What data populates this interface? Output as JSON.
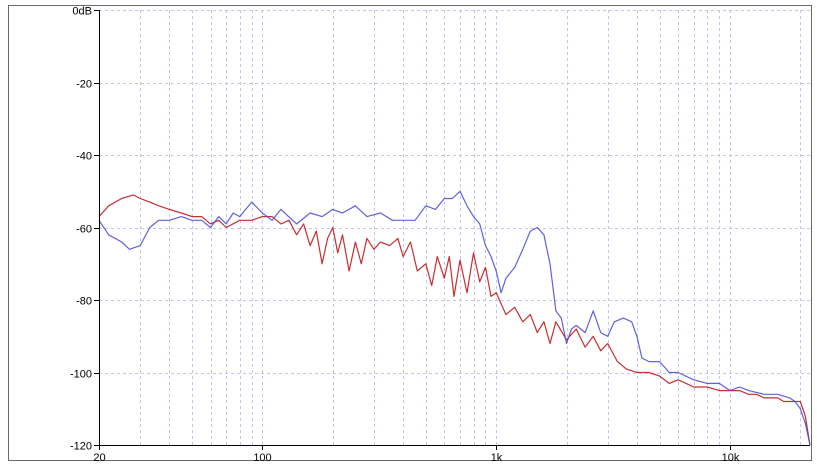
{
  "chart_data": {
    "type": "line",
    "title": "",
    "xlabel": "",
    "ylabel": "",
    "x_scale": "log",
    "xlim": [
      20,
      22000
    ],
    "ylim": [
      -120,
      0
    ],
    "grid": true,
    "legend": "none",
    "y_ticks": [
      {
        "value": 0,
        "label": "0dB"
      },
      {
        "value": -20,
        "label": "-20"
      },
      {
        "value": -40,
        "label": "-40"
      },
      {
        "value": -60,
        "label": "-60"
      },
      {
        "value": -80,
        "label": "-80"
      },
      {
        "value": -100,
        "label": "-100"
      },
      {
        "value": -120,
        "label": "-120"
      }
    ],
    "x_ticks": [
      {
        "value": 20,
        "label": "20"
      },
      {
        "value": 100,
        "label": "100"
      },
      {
        "value": 1000,
        "label": "1k"
      },
      {
        "value": 10000,
        "label": "10k"
      }
    ],
    "series": [
      {
        "color": "#c01818",
        "x": [
          20,
          22,
          25,
          28,
          30,
          33,
          36,
          40,
          45,
          50,
          55,
          60,
          65,
          70,
          80,
          90,
          100,
          110,
          120,
          130,
          140,
          150,
          160,
          170,
          180,
          190,
          200,
          210,
          220,
          235,
          250,
          265,
          280,
          300,
          320,
          350,
          380,
          400,
          430,
          460,
          500,
          530,
          560,
          600,
          630,
          660,
          700,
          750,
          800,
          850,
          900,
          950,
          1000,
          1100,
          1200,
          1300,
          1400,
          1500,
          1600,
          1700,
          1800,
          2000,
          2200,
          2400,
          2600,
          2800,
          3000,
          3300,
          3600,
          4000,
          4500,
          5000,
          5500,
          6000,
          7000,
          8000,
          9000,
          10000,
          11000,
          12000,
          13000,
          14000,
          15000,
          16000,
          17000,
          18000,
          19000,
          20000,
          21000,
          22000
        ],
        "y": [
          -57,
          -54,
          -52,
          -51,
          -52,
          -53,
          -54,
          -55,
          -56,
          -57,
          -57,
          -59,
          -58,
          -60,
          -58,
          -58,
          -57,
          -57,
          -59,
          -58,
          -62,
          -59,
          -65,
          -61,
          -70,
          -63,
          -60,
          -67,
          -62,
          -72,
          -64,
          -70,
          -63,
          -66,
          -64,
          -65,
          -63,
          -68,
          -64,
          -72,
          -70,
          -76,
          -68,
          -74,
          -68,
          -79,
          -69,
          -78,
          -67,
          -75,
          -71,
          -79,
          -78,
          -84,
          -82,
          -86,
          -84,
          -89,
          -86,
          -92,
          -86,
          -91,
          -88,
          -93,
          -90,
          -94,
          -92,
          -97,
          -99,
          -100,
          -100,
          -101,
          -103,
          -102,
          -104,
          -104,
          -105,
          -105,
          -105,
          -106,
          -106,
          -107,
          -107,
          -107,
          -108,
          -108,
          -108,
          -108,
          -112,
          -120
        ]
      },
      {
        "color": "#5050dc",
        "x": [
          20,
          22,
          25,
          27,
          30,
          33,
          36,
          40,
          45,
          50,
          55,
          60,
          65,
          70,
          75,
          80,
          90,
          100,
          110,
          120,
          140,
          160,
          180,
          200,
          220,
          250,
          280,
          320,
          360,
          400,
          450,
          500,
          550,
          600,
          650,
          700,
          750,
          800,
          850,
          900,
          950,
          1000,
          1050,
          1100,
          1200,
          1300,
          1400,
          1500,
          1600,
          1700,
          1800,
          1900,
          2000,
          2100,
          2200,
          2400,
          2600,
          2800,
          3000,
          3200,
          3500,
          3800,
          4000,
          4200,
          4500,
          5000,
          5500,
          6000,
          7000,
          8000,
          9000,
          10000,
          11000,
          12000,
          14000,
          16000,
          18000,
          19000,
          20000,
          21000,
          22000
        ],
        "y": [
          -58,
          -62,
          -64,
          -66,
          -65,
          -60,
          -58,
          -58,
          -57,
          -58,
          -58,
          -60,
          -57,
          -59,
          -56,
          -57,
          -53,
          -56,
          -58,
          -55,
          -59,
          -56,
          -57,
          -55,
          -56,
          -54,
          -57,
          -56,
          -58,
          -58,
          -58,
          -54,
          -55,
          -52,
          -52,
          -50,
          -54,
          -57,
          -59,
          -65,
          -68,
          -72,
          -78,
          -74,
          -71,
          -66,
          -61,
          -60,
          -62,
          -70,
          -83,
          -85,
          -92,
          -88,
          -87,
          -89,
          -83,
          -89,
          -90,
          -86,
          -85,
          -86,
          -90,
          -96,
          -97,
          -97,
          -100,
          -100,
          -102,
          -103,
          -103,
          -105,
          -104,
          -105,
          -106,
          -106,
          -107,
          -108,
          -110,
          -114,
          -120
        ]
      }
    ]
  }
}
